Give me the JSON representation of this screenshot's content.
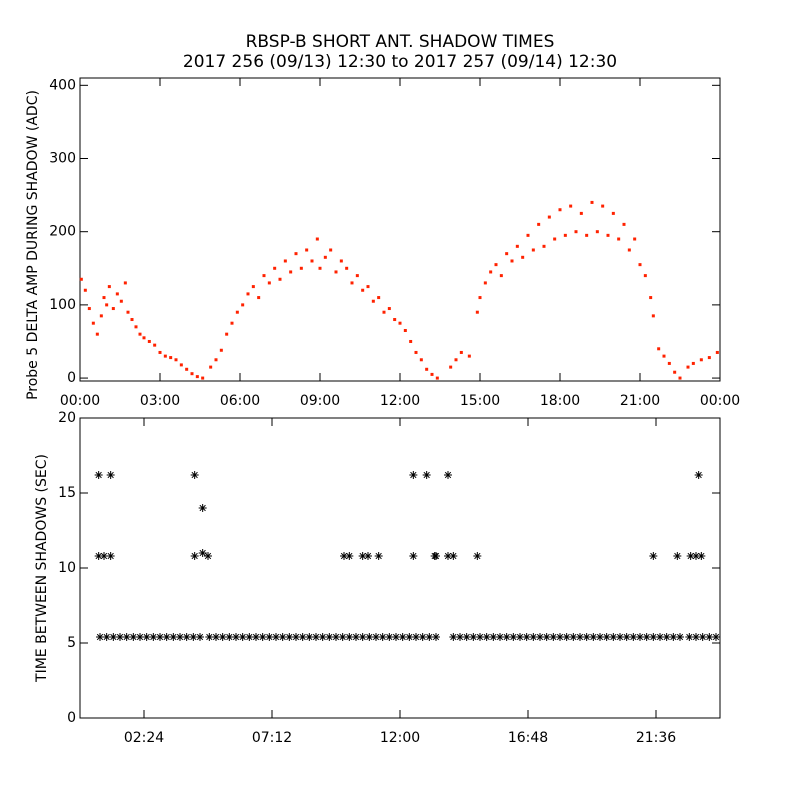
{
  "chart_data": [
    {
      "type": "scatter",
      "title": "RBSP-B SHORT ANT. SHADOW TIMES",
      "subtitle": "2017 256 (09/13) 12:30 to 2017 257 (09/14) 12:30",
      "ylabel": "Probe 5 DELTA AMP DURING SHADOW (ADC)",
      "color": "#ff2200",
      "marker": "dot",
      "xlim": [
        0,
        24
      ],
      "xticks": [
        {
          "value": 0,
          "label": "00:00"
        },
        {
          "value": 3,
          "label": "03:00"
        },
        {
          "value": 6,
          "label": "06:00"
        },
        {
          "value": 9,
          "label": "09:00"
        },
        {
          "value": 12,
          "label": "12:00"
        },
        {
          "value": 15,
          "label": "15:00"
        },
        {
          "value": 18,
          "label": "18:00"
        },
        {
          "value": 21,
          "label": "21:00"
        },
        {
          "value": 24,
          "label": "00:00"
        }
      ],
      "ylim": [
        -4,
        410
      ],
      "yticks": [
        0,
        100,
        200,
        300,
        400
      ],
      "x": [
        0.05,
        0.2,
        0.35,
        0.5,
        0.65,
        0.8,
        0.9,
        1.0,
        1.1,
        1.25,
        1.4,
        1.55,
        1.7,
        1.8,
        1.95,
        2.1,
        2.25,
        2.4,
        2.6,
        2.8,
        3.0,
        3.2,
        3.4,
        3.6,
        3.8,
        4.0,
        4.2,
        4.4,
        4.6,
        4.9,
        5.1,
        5.3,
        5.5,
        5.7,
        5.9,
        6.1,
        6.3,
        6.5,
        6.7,
        6.9,
        7.1,
        7.3,
        7.5,
        7.7,
        7.9,
        8.1,
        8.3,
        8.5,
        8.7,
        8.9,
        9.0,
        9.2,
        9.4,
        9.6,
        9.8,
        10.0,
        10.2,
        10.4,
        10.6,
        10.8,
        11.0,
        11.2,
        11.4,
        11.6,
        11.8,
        12.0,
        12.2,
        12.4,
        12.6,
        12.8,
        13.0,
        13.2,
        13.4,
        13.9,
        14.1,
        14.3,
        14.6,
        14.9,
        15.0,
        15.2,
        15.4,
        15.6,
        15.8,
        16.0,
        16.2,
        16.4,
        16.6,
        16.8,
        17.0,
        17.2,
        17.4,
        17.6,
        17.8,
        18.0,
        18.2,
        18.4,
        18.6,
        18.8,
        19.0,
        19.2,
        19.4,
        19.6,
        19.8,
        20.0,
        20.2,
        20.4,
        20.6,
        20.8,
        21.0,
        21.2,
        21.4,
        21.5,
        21.7,
        21.9,
        22.1,
        22.3,
        22.5,
        22.8,
        23.0,
        23.3,
        23.6,
        23.9
      ],
      "values": [
        135,
        120,
        95,
        75,
        60,
        85,
        110,
        100,
        125,
        95,
        115,
        105,
        130,
        90,
        80,
        70,
        60,
        55,
        50,
        45,
        35,
        30,
        28,
        25,
        18,
        12,
        6,
        2,
        0,
        15,
        25,
        38,
        60,
        75,
        90,
        100,
        115,
        125,
        110,
        140,
        130,
        150,
        135,
        160,
        145,
        170,
        150,
        175,
        160,
        190,
        150,
        165,
        175,
        145,
        160,
        150,
        130,
        140,
        120,
        125,
        105,
        110,
        90,
        95,
        80,
        75,
        65,
        50,
        35,
        25,
        12,
        5,
        0,
        15,
        25,
        35,
        30,
        90,
        110,
        130,
        145,
        155,
        140,
        170,
        160,
        180,
        165,
        195,
        175,
        210,
        180,
        220,
        190,
        230,
        195,
        235,
        200,
        225,
        195,
        240,
        200,
        235,
        195,
        225,
        190,
        210,
        175,
        190,
        155,
        140,
        110,
        85,
        40,
        30,
        20,
        8,
        0,
        15,
        20,
        25,
        28,
        35
      ]
    },
    {
      "type": "scatter",
      "ylabel": "TIME BETWEEN SHADOWS (SEC)",
      "color": "#000000",
      "marker": "asterisk",
      "xlim": [
        0,
        24
      ],
      "xticks": [
        {
          "value": 2.4,
          "label": "02:24"
        },
        {
          "value": 7.2,
          "label": "07:12"
        },
        {
          "value": 12,
          "label": "12:00"
        },
        {
          "value": 16.8,
          "label": "16:48"
        },
        {
          "value": 21.6,
          "label": "21:36"
        }
      ],
      "ylim": [
        0,
        20
      ],
      "yticks": [
        0,
        5,
        10,
        15,
        20
      ],
      "x": [
        0.75,
        1,
        1.25,
        1.5,
        1.75,
        2,
        2.25,
        2.5,
        2.75,
        3,
        3.25,
        3.5,
        3.75,
        4,
        4.25,
        4.5,
        4.85,
        5.1,
        5.35,
        5.6,
        5.85,
        6.1,
        6.35,
        6.6,
        6.85,
        7.1,
        7.35,
        7.6,
        7.85,
        8.1,
        8.35,
        8.6,
        8.85,
        9.1,
        9.35,
        9.6,
        9.85,
        10.1,
        10.35,
        10.6,
        10.85,
        11.1,
        11.35,
        11.6,
        11.85,
        12.1,
        12.35,
        12.6,
        12.85,
        13.1,
        13.35,
        14,
        14.25,
        14.5,
        14.75,
        15,
        15.25,
        15.5,
        15.75,
        16,
        16.25,
        16.5,
        16.75,
        17,
        17.25,
        17.5,
        17.75,
        18,
        18.25,
        18.5,
        18.75,
        19,
        19.25,
        19.5,
        19.75,
        20,
        20.25,
        20.5,
        20.75,
        21,
        21.25,
        21.5,
        21.75,
        22,
        22.25,
        22.5,
        22.85,
        23.1,
        23.35,
        23.6,
        23.85,
        0.7,
        1.15,
        0.7,
        0.9,
        1.15,
        4.3,
        4.3,
        4.6,
        4.6,
        4.8,
        9.9,
        10.1,
        10.6,
        10.8,
        11.2,
        12.5,
        13.0,
        12.5,
        13.3,
        13.35,
        13.8,
        13.8,
        14.0,
        14.9,
        21.5,
        22.4,
        22.9,
        23.1,
        23.2,
        23.3
      ],
      "values": [
        5.4,
        5.4,
        5.4,
        5.4,
        5.4,
        5.4,
        5.4,
        5.4,
        5.4,
        5.4,
        5.4,
        5.4,
        5.4,
        5.4,
        5.4,
        5.4,
        5.4,
        5.4,
        5.4,
        5.4,
        5.4,
        5.4,
        5.4,
        5.4,
        5.4,
        5.4,
        5.4,
        5.4,
        5.4,
        5.4,
        5.4,
        5.4,
        5.4,
        5.4,
        5.4,
        5.4,
        5.4,
        5.4,
        5.4,
        5.4,
        5.4,
        5.4,
        5.4,
        5.4,
        5.4,
        5.4,
        5.4,
        5.4,
        5.4,
        5.4,
        5.4,
        5.4,
        5.4,
        5.4,
        5.4,
        5.4,
        5.4,
        5.4,
        5.4,
        5.4,
        5.4,
        5.4,
        5.4,
        5.4,
        5.4,
        5.4,
        5.4,
        5.4,
        5.4,
        5.4,
        5.4,
        5.4,
        5.4,
        5.4,
        5.4,
        5.4,
        5.4,
        5.4,
        5.4,
        5.4,
        5.4,
        5.4,
        5.4,
        5.4,
        5.4,
        5.4,
        5.4,
        5.4,
        5.4,
        5.4,
        5.4,
        16.2,
        16.2,
        10.8,
        10.8,
        10.8,
        16.2,
        10.8,
        14,
        11,
        10.8,
        10.8,
        10.8,
        10.8,
        10.8,
        10.8,
        16.2,
        16.2,
        10.8,
        10.8,
        10.8,
        16.2,
        10.8,
        10.8,
        10.8,
        10.8,
        10.8,
        10.8,
        10.8,
        16.2,
        10.8
      ]
    }
  ]
}
